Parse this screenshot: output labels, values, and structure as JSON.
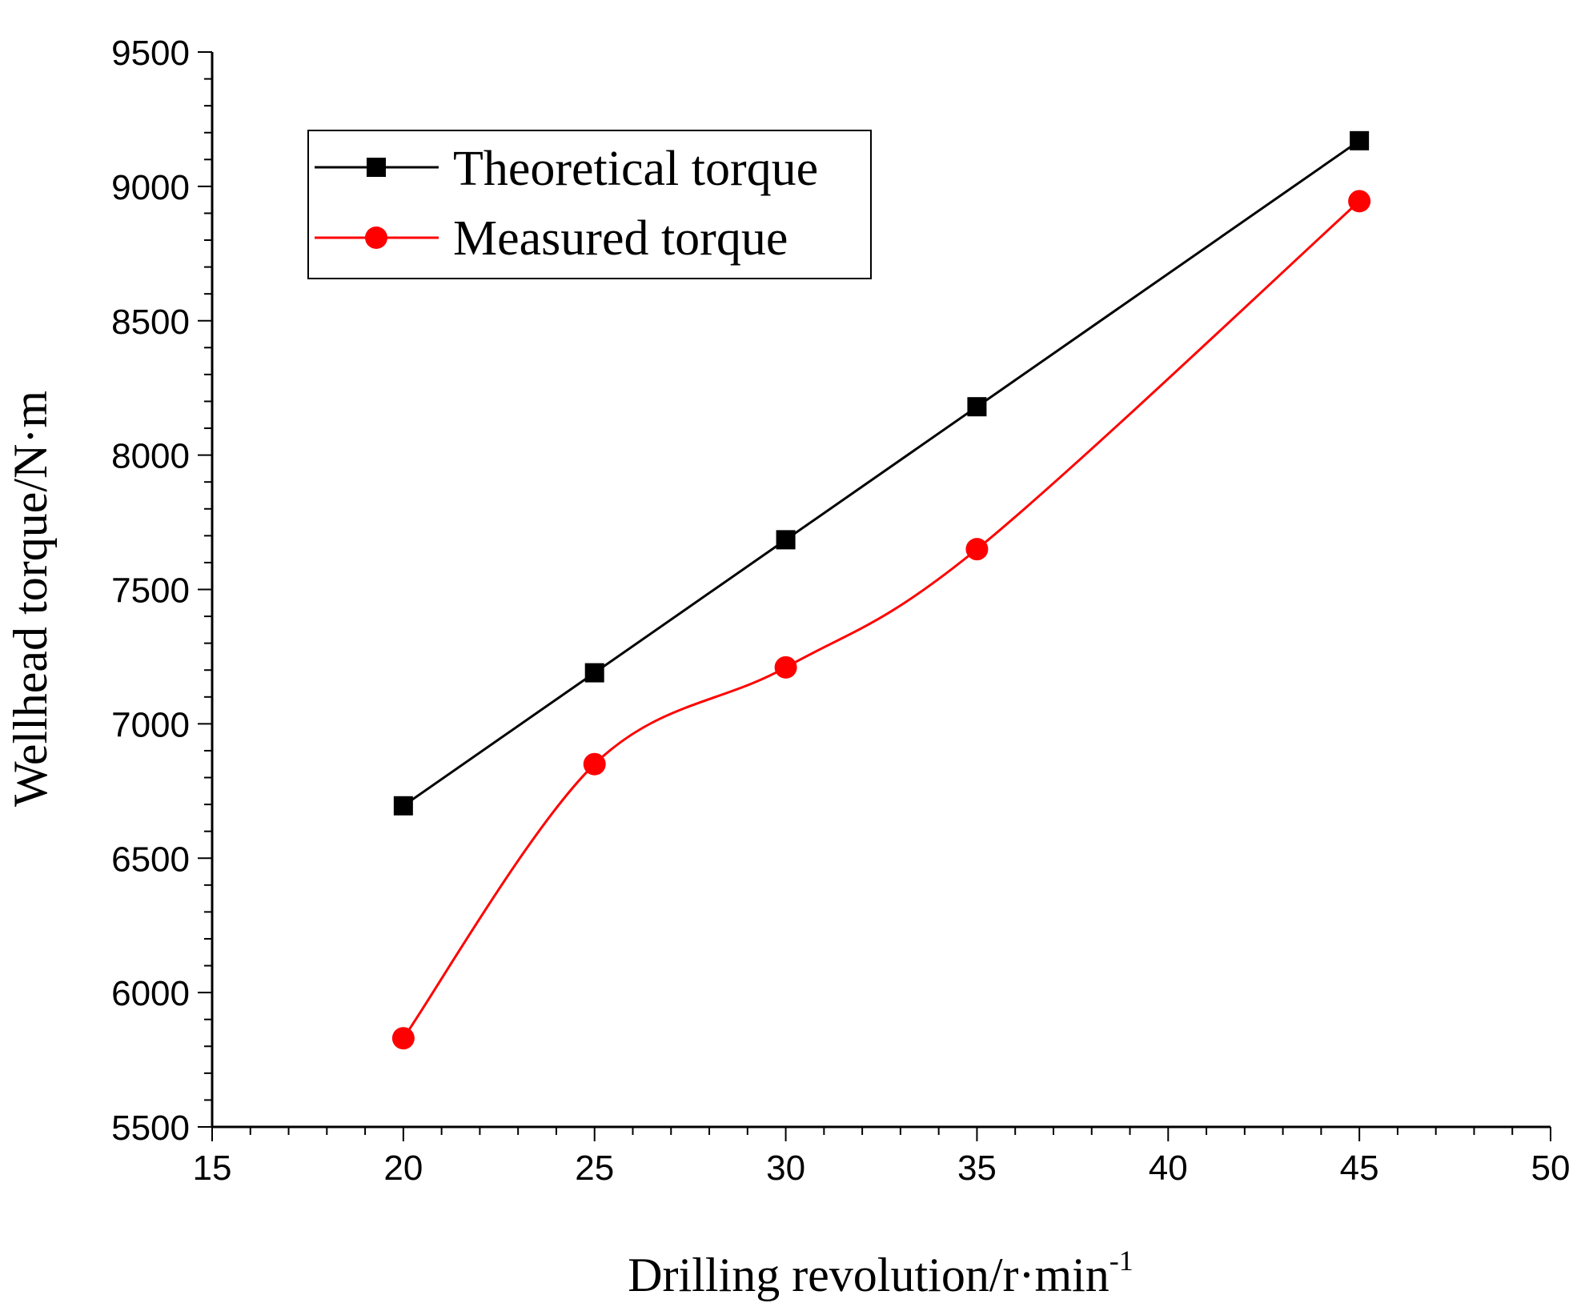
{
  "chart_data": {
    "type": "line",
    "title": "",
    "xlabel": "Drilling revolution/r·min",
    "xlabel_sup": "-1",
    "ylabel": "Wellhead torque/N·m",
    "xlim": [
      15,
      50
    ],
    "ylim": [
      5500,
      9500
    ],
    "xticks": [
      15,
      20,
      25,
      30,
      35,
      40,
      45,
      50
    ],
    "yticks": [
      5500,
      6000,
      6500,
      7000,
      7500,
      8000,
      8500,
      9000,
      9500
    ],
    "grid": false,
    "legend_position": "top-left",
    "series": [
      {
        "name": "Theoretical torque",
        "color": "#000000",
        "marker": "square",
        "smooth": false,
        "x": [
          20,
          25,
          30,
          35,
          45
        ],
        "values": [
          6695,
          7190,
          7685,
          8180,
          9170
        ]
      },
      {
        "name": "Measured torque",
        "color": "#ff0000",
        "marker": "circle",
        "smooth": true,
        "x": [
          20,
          25,
          30,
          35,
          45
        ],
        "values": [
          5830,
          6850,
          7210,
          7650,
          8945
        ]
      }
    ]
  }
}
